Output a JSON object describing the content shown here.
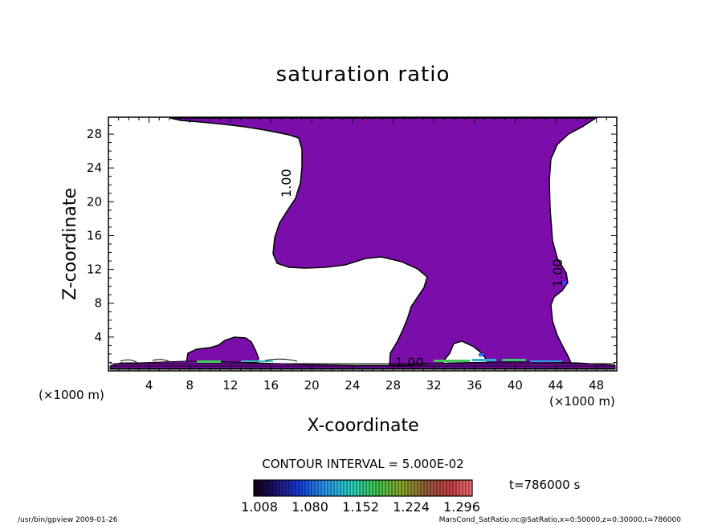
{
  "chart_data": {
    "type": "heatmap",
    "title": "saturation ratio",
    "xlabel": "X-coordinate",
    "ylabel": "Z-coordinate",
    "x_unit_left": "(×1000 m)",
    "x_unit_right": "(×1000 m)",
    "xlim": [
      0,
      50
    ],
    "ylim": [
      0,
      30
    ],
    "x_ticks": [
      "4",
      "8",
      "12",
      "16",
      "20",
      "24",
      "28",
      "32",
      "36",
      "40",
      "44",
      "48"
    ],
    "y_ticks": [
      "4",
      "8",
      "12",
      "16",
      "20",
      "24",
      "28"
    ],
    "contour_interval": "CONTOUR INTERVAL = 5.000E-02",
    "contour_labels": [
      "1.00",
      "1.00",
      "1.00"
    ],
    "colorbar": {
      "ticks": [
        "1.008",
        "1.080",
        "1.152",
        "1.224",
        "1.296"
      ],
      "min": 1.008,
      "max": 1.296
    },
    "time_label": "t=786000 s",
    "fill_color": "#7b0eaa"
  },
  "footer": {
    "left": "/usr/bin/gpview  2009-01-26",
    "right": "MarsCond_SatRatio.nc@SatRatio,x=0:50000,z=0:30000,t=786000"
  }
}
